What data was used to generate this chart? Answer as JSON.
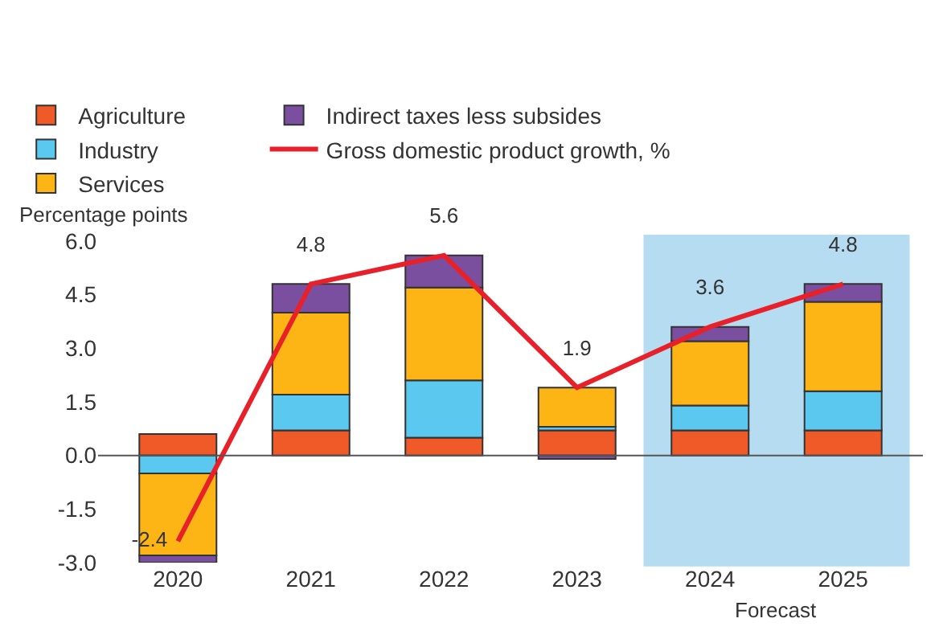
{
  "chart_data": {
    "type": "bar",
    "stacked": true,
    "ylabel": "Percentage points",
    "categories": [
      "2020",
      "2021",
      "2022",
      "2023",
      "2024",
      "2025"
    ],
    "series": [
      {
        "name": "Agriculture",
        "color": "#f05a28",
        "values": [
          0.6,
          0.7,
          0.5,
          0.7,
          0.7,
          0.7
        ]
      },
      {
        "name": "Industry",
        "color": "#5bc8ef",
        "values": [
          -0.5,
          1.0,
          1.6,
          0.1,
          0.7,
          1.1
        ]
      },
      {
        "name": "Services",
        "color": "#fdb515",
        "values": [
          -2.3,
          2.3,
          2.6,
          1.1,
          1.8,
          2.5
        ]
      },
      {
        "name": "Indirect taxes less subsides",
        "color": "#7b4fa0",
        "values": [
          -0.2,
          0.8,
          0.9,
          -0.1,
          0.4,
          0.5
        ]
      },
      {
        "name": "Gross domestic product growth, %",
        "type": "line",
        "color": "#e8202a",
        "values": [
          -2.4,
          4.8,
          5.6,
          1.9,
          3.6,
          4.8
        ],
        "value_labels": [
          "-2.4",
          "4.8",
          "5.6",
          "1.9",
          "3.6",
          "4.8"
        ]
      }
    ],
    "ylim": [
      -3.0,
      6.0
    ],
    "yticks": [
      {
        "value": -3,
        "label": "-3.0"
      },
      {
        "value": -1.5,
        "label": "-1.5"
      },
      {
        "value": 0,
        "label": "0.0"
      },
      {
        "value": 1.5,
        "label": "1.5"
      },
      {
        "value": 3,
        "label": "3.0"
      },
      {
        "value": 4.5,
        "label": "4.5"
      },
      {
        "value": 6,
        "label": "6.0"
      }
    ],
    "bands": [
      {
        "axis": "x",
        "from": "2024",
        "to": "2025",
        "label": "Forecast",
        "color": "#b6dcf2"
      }
    ],
    "ref_lines": [
      {
        "axis": "y",
        "value": 0,
        "color": "#555555"
      }
    ],
    "grid": false,
    "legend": "top left"
  }
}
